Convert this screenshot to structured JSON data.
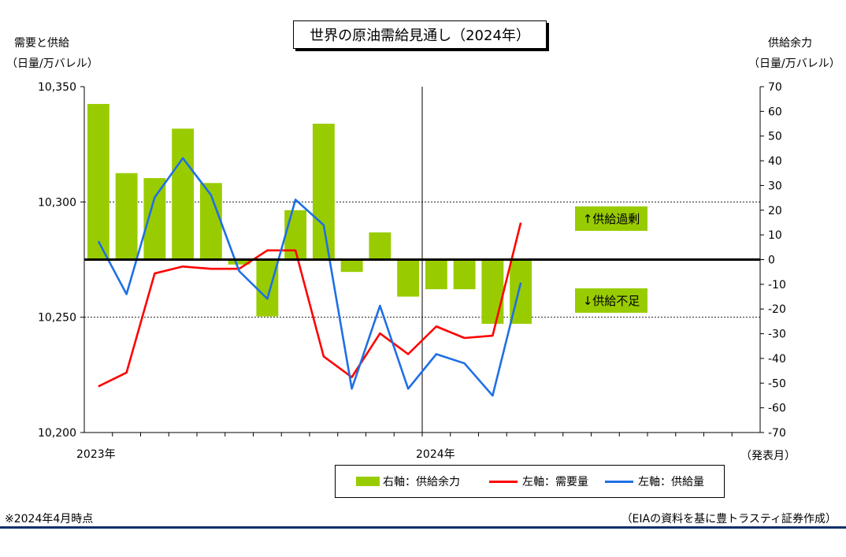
{
  "colors": {
    "bar": "#99cc00",
    "demand": "#ff0000",
    "supply": "#1f6fe5",
    "footer_line": "#0f2f6b"
  },
  "header": {
    "title": "世界の原油需給見通し（2024年）",
    "left_axis_title": "需要と供給",
    "left_axis_unit": "（日量/万バレル）",
    "right_axis_title": "供給余力",
    "right_axis_unit": "（日量/万バレル）"
  },
  "chart_data": {
    "type": "bar+line",
    "x": [
      "2023-01",
      "2023-02",
      "2023-03",
      "2023-04",
      "2023-05",
      "2023-06",
      "2023-07",
      "2023-08",
      "2023-09",
      "2023-10",
      "2023-11",
      "2023-12",
      "2024-01",
      "2024-02",
      "2024-03",
      "2024-04",
      "2024-05"
    ],
    "x_tick_labels": [
      {
        "index": 0,
        "label": "2023年"
      },
      {
        "index": 12,
        "label": "2024年"
      }
    ],
    "x_axis_span_months": 24,
    "xlabel": "（発表月）",
    "left_axis": {
      "ylim": [
        10200,
        10350
      ],
      "ticks": [
        10200,
        10250,
        10300,
        10350
      ],
      "tick_labels": [
        "10,200",
        "10,250",
        "10,300",
        "10,350"
      ]
    },
    "right_axis": {
      "ylim": [
        -70,
        70
      ],
      "ticks": [
        70,
        60,
        50,
        40,
        30,
        20,
        10,
        0,
        -10,
        -20,
        -30,
        -40,
        -50,
        -60,
        -70
      ]
    },
    "series": [
      {
        "name": "右軸：供給余力",
        "type": "bar",
        "axis": "right",
        "values": [
          63,
          35,
          33,
          53,
          31,
          -2,
          -23,
          20,
          55,
          -5,
          11,
          -15,
          -12,
          -12,
          -26,
          -26,
          null
        ]
      },
      {
        "name": "左軸：需要量",
        "type": "line",
        "axis": "left",
        "values": [
          10220,
          10226,
          10269,
          10272,
          10271,
          10271,
          10279,
          10279,
          10233,
          10224,
          10243,
          10234,
          10246,
          10241,
          10242,
          10291,
          null
        ]
      },
      {
        "name": "左軸：供給量",
        "type": "line",
        "axis": "left",
        "values": [
          10283,
          10260,
          10302,
          10319,
          10303,
          10270,
          10258,
          10301,
          10290,
          10219,
          10255,
          10219,
          10234,
          10230,
          10216,
          10265,
          null
        ]
      }
    ],
    "annotations": [
      {
        "text": "↑供給過剰",
        "bg": "#99cc00"
      },
      {
        "text": "↓供給不足",
        "bg": "#99cc00"
      }
    ]
  },
  "legend": {
    "bar_label": "右軸：供給余力",
    "demand_label": "左軸：需要量",
    "supply_label": "左軸：供給量"
  },
  "footer": {
    "note": "※2024年4月時点",
    "source": "（EIAの資料を基に豊トラスティ証券作成）"
  }
}
